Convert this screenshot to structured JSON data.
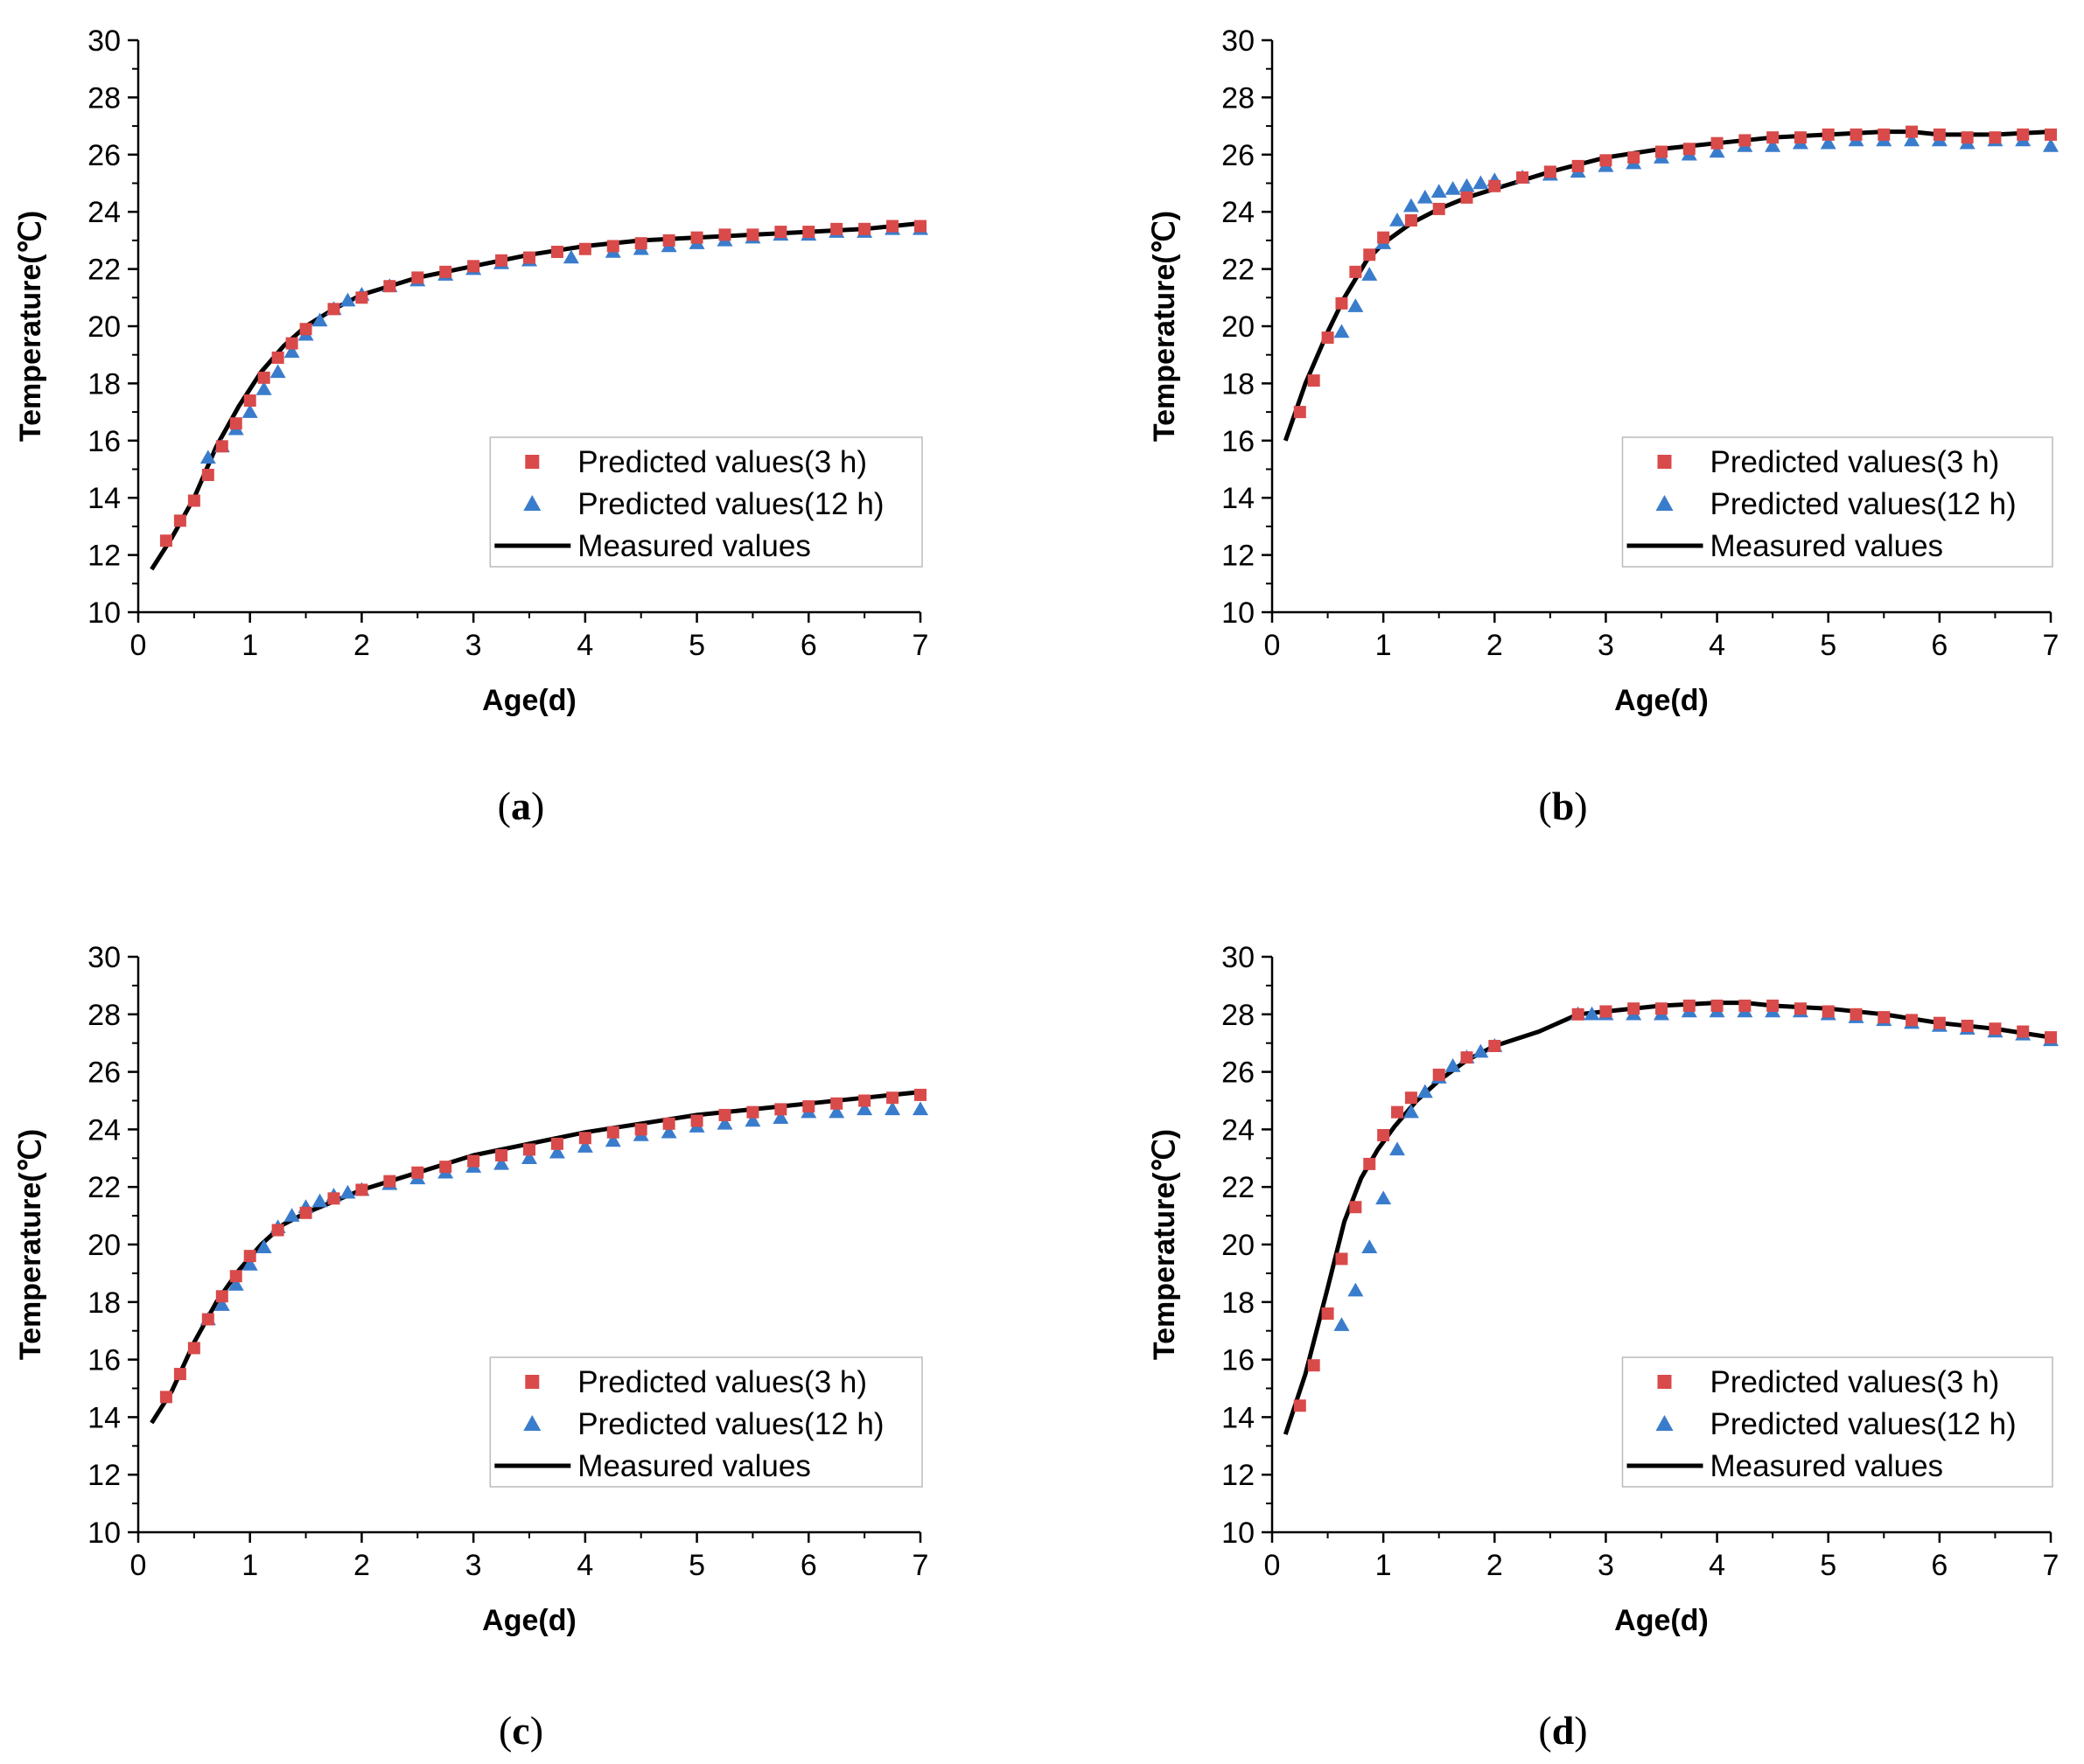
{
  "chart_data": [
    {
      "type": "line",
      "panel_label": "a",
      "xlabel": "Age(d)",
      "ylabel": "Temperature(℃)",
      "xlim": [
        0,
        7
      ],
      "ylim": [
        10,
        30
      ],
      "xticks": [
        0,
        1,
        2,
        3,
        4,
        5,
        6,
        7
      ],
      "yticks": [
        10,
        12,
        14,
        16,
        18,
        20,
        22,
        24,
        26,
        28,
        30
      ],
      "legend_position": "bottom-right",
      "legend": [
        "Predicted values(3 h)",
        "Predicted values(12 h)",
        "Measured values"
      ],
      "colors": {
        "pred_3h": "#d94a4a",
        "pred_12h": "#3a7ccc",
        "measured": "#000000"
      },
      "series": [
        {
          "name": "Predicted values(3 h)",
          "marker": "square",
          "x": [
            0.25,
            0.375,
            0.5,
            0.625,
            0.75,
            0.875,
            1.0,
            1.125,
            1.25,
            1.375,
            1.5,
            1.75,
            2.0,
            2.25,
            2.5,
            2.75,
            3.0,
            3.25,
            3.5,
            3.75,
            4.0,
            4.25,
            4.5,
            4.75,
            5.0,
            5.25,
            5.5,
            5.75,
            6.0,
            6.25,
            6.5,
            6.75,
            7.0
          ],
          "y": [
            12.5,
            13.2,
            13.9,
            14.8,
            15.8,
            16.6,
            17.4,
            18.2,
            18.9,
            19.4,
            19.9,
            20.6,
            21.0,
            21.4,
            21.7,
            21.9,
            22.1,
            22.3,
            22.4,
            22.6,
            22.7,
            22.8,
            22.9,
            23.0,
            23.1,
            23.2,
            23.2,
            23.3,
            23.3,
            23.4,
            23.4,
            23.5,
            23.5
          ]
        },
        {
          "name": "Predicted values(12 h)",
          "marker": "triangle",
          "x": [
            0.625,
            0.75,
            0.875,
            1.0,
            1.125,
            1.25,
            1.375,
            1.5,
            1.625,
            1.75,
            1.875,
            2.0,
            2.25,
            2.5,
            2.75,
            3.0,
            3.25,
            3.5,
            3.875,
            4.25,
            4.5,
            4.75,
            5.0,
            5.25,
            5.5,
            5.75,
            6.0,
            6.25,
            6.5,
            6.75,
            7.0
          ],
          "y": [
            15.4,
            15.8,
            16.4,
            17.0,
            17.8,
            18.4,
            19.1,
            19.7,
            20.2,
            20.6,
            20.9,
            21.1,
            21.4,
            21.6,
            21.8,
            22.0,
            22.2,
            22.3,
            22.4,
            22.6,
            22.7,
            22.8,
            22.9,
            23.0,
            23.1,
            23.2,
            23.2,
            23.3,
            23.3,
            23.4,
            23.4
          ]
        },
        {
          "name": "Measured values",
          "marker": "line",
          "x": [
            0.12,
            0.3,
            0.5,
            0.7,
            0.9,
            1.1,
            1.3,
            1.5,
            1.75,
            2.0,
            2.5,
            3.0,
            3.5,
            4.0,
            4.5,
            5.0,
            5.5,
            6.0,
            6.5,
            7.0
          ],
          "y": [
            11.5,
            12.6,
            14.0,
            15.8,
            17.2,
            18.4,
            19.3,
            20.0,
            20.6,
            21.1,
            21.7,
            22.1,
            22.5,
            22.8,
            23.0,
            23.1,
            23.2,
            23.3,
            23.4,
            23.6
          ]
        }
      ]
    },
    {
      "type": "line",
      "panel_label": "b",
      "xlabel": "Age(d)",
      "ylabel": "Temperature(℃)",
      "xlim": [
        0,
        7
      ],
      "ylim": [
        10,
        30
      ],
      "xticks": [
        0,
        1,
        2,
        3,
        4,
        5,
        6,
        7
      ],
      "yticks": [
        10,
        12,
        14,
        16,
        18,
        20,
        22,
        24,
        26,
        28,
        30
      ],
      "legend_position": "bottom-right",
      "legend": [
        "Predicted values(3 h)",
        "Predicted values(12 h)",
        "Measured values"
      ],
      "colors": {
        "pred_3h": "#d94a4a",
        "pred_12h": "#3a7ccc",
        "measured": "#000000"
      },
      "series": [
        {
          "name": "Predicted values(3 h)",
          "marker": "square",
          "x": [
            0.25,
            0.375,
            0.5,
            0.625,
            0.75,
            0.875,
            1.0,
            1.25,
            1.5,
            1.75,
            2.0,
            2.25,
            2.5,
            2.75,
            3.0,
            3.25,
            3.5,
            3.75,
            4.0,
            4.25,
            4.5,
            4.75,
            5.0,
            5.25,
            5.5,
            5.75,
            6.0,
            6.25,
            6.5,
            6.75,
            7.0
          ],
          "y": [
            17.0,
            18.1,
            19.6,
            20.8,
            21.9,
            22.5,
            23.1,
            23.7,
            24.1,
            24.5,
            24.9,
            25.2,
            25.4,
            25.6,
            25.8,
            25.9,
            26.1,
            26.2,
            26.4,
            26.5,
            26.6,
            26.6,
            26.7,
            26.7,
            26.7,
            26.8,
            26.7,
            26.6,
            26.6,
            26.7,
            26.7
          ]
        },
        {
          "name": "Predicted values(12 h)",
          "marker": "triangle",
          "x": [
            0.625,
            0.75,
            0.875,
            1.0,
            1.125,
            1.25,
            1.375,
            1.5,
            1.625,
            1.75,
            1.875,
            2.0,
            2.25,
            2.5,
            2.75,
            3.0,
            3.25,
            3.5,
            3.75,
            4.0,
            4.25,
            4.5,
            4.75,
            5.0,
            5.25,
            5.5,
            5.75,
            6.0,
            6.25,
            6.5,
            6.75,
            7.0
          ],
          "y": [
            19.8,
            20.7,
            21.8,
            22.9,
            23.7,
            24.2,
            24.5,
            24.7,
            24.8,
            24.9,
            25.0,
            25.1,
            25.2,
            25.3,
            25.4,
            25.6,
            25.7,
            25.9,
            26.0,
            26.1,
            26.3,
            26.3,
            26.4,
            26.4,
            26.5,
            26.5,
            26.5,
            26.5,
            26.4,
            26.5,
            26.5,
            26.3
          ]
        },
        {
          "name": "Measured values",
          "marker": "line",
          "x": [
            0.12,
            0.3,
            0.5,
            0.65,
            0.85,
            1.0,
            1.25,
            1.5,
            1.75,
            2.0,
            2.5,
            3.0,
            3.5,
            4.0,
            4.5,
            5.0,
            5.5,
            5.75,
            6.0,
            6.5,
            7.0
          ],
          "y": [
            16.0,
            18.0,
            19.8,
            21.0,
            22.3,
            22.9,
            23.6,
            24.1,
            24.5,
            24.8,
            25.4,
            25.9,
            26.2,
            26.4,
            26.6,
            26.7,
            26.8,
            26.8,
            26.7,
            26.7,
            26.8
          ]
        }
      ]
    },
    {
      "type": "line",
      "panel_label": "c",
      "xlabel": "Age(d)",
      "ylabel": "Temperature(℃)",
      "xlim": [
        0,
        7
      ],
      "ylim": [
        10,
        30
      ],
      "xticks": [
        0,
        1,
        2,
        3,
        4,
        5,
        6,
        7
      ],
      "yticks": [
        10,
        12,
        14,
        16,
        18,
        20,
        22,
        24,
        26,
        28,
        30
      ],
      "legend_position": "bottom-right",
      "legend": [
        "Predicted values(3 h)",
        "Predicted values(12 h)",
        "Measured values"
      ],
      "colors": {
        "pred_3h": "#d94a4a",
        "pred_12h": "#3a7ccc",
        "measured": "#000000"
      },
      "series": [
        {
          "name": "Predicted values(3 h)",
          "marker": "square",
          "x": [
            0.25,
            0.375,
            0.5,
            0.625,
            0.75,
            0.875,
            1.0,
            1.25,
            1.5,
            1.75,
            2.0,
            2.25,
            2.5,
            2.75,
            3.0,
            3.25,
            3.5,
            3.75,
            4.0,
            4.25,
            4.5,
            4.75,
            5.0,
            5.25,
            5.5,
            5.75,
            6.0,
            6.25,
            6.5,
            6.75,
            7.0
          ],
          "y": [
            14.7,
            15.5,
            16.4,
            17.4,
            18.2,
            18.9,
            19.6,
            20.5,
            21.1,
            21.6,
            21.9,
            22.2,
            22.5,
            22.7,
            22.9,
            23.1,
            23.3,
            23.5,
            23.7,
            23.9,
            24.0,
            24.2,
            24.3,
            24.5,
            24.6,
            24.7,
            24.8,
            24.9,
            25.0,
            25.1,
            25.2
          ]
        },
        {
          "name": "Predicted values(12 h)",
          "marker": "triangle",
          "x": [
            0.625,
            0.75,
            0.875,
            1.0,
            1.125,
            1.25,
            1.375,
            1.5,
            1.625,
            1.75,
            1.875,
            2.0,
            2.25,
            2.5,
            2.75,
            3.0,
            3.25,
            3.5,
            3.75,
            4.0,
            4.25,
            4.5,
            4.75,
            5.0,
            5.25,
            5.5,
            5.75,
            6.0,
            6.25,
            6.5,
            6.75,
            7.0
          ],
          "y": [
            17.4,
            17.9,
            18.6,
            19.3,
            19.9,
            20.6,
            21.0,
            21.3,
            21.5,
            21.7,
            21.8,
            21.9,
            22.1,
            22.3,
            22.5,
            22.7,
            22.8,
            23.0,
            23.2,
            23.4,
            23.6,
            23.8,
            23.9,
            24.1,
            24.2,
            24.3,
            24.4,
            24.6,
            24.6,
            24.7,
            24.7,
            24.7
          ]
        },
        {
          "name": "Measured values",
          "marker": "line",
          "x": [
            0.12,
            0.3,
            0.5,
            0.7,
            0.9,
            1.1,
            1.3,
            1.5,
            1.75,
            2.0,
            2.5,
            3.0,
            3.5,
            4.0,
            4.5,
            5.0,
            5.5,
            6.0,
            6.5,
            7.0
          ],
          "y": [
            13.8,
            14.9,
            16.6,
            18.0,
            19.1,
            20.0,
            20.7,
            21.1,
            21.5,
            21.9,
            22.5,
            23.1,
            23.5,
            23.9,
            24.2,
            24.5,
            24.7,
            24.9,
            25.1,
            25.3
          ]
        }
      ]
    },
    {
      "type": "line",
      "panel_label": "d",
      "xlabel": "Age(d)",
      "ylabel": "Temperature(℃)",
      "xlim": [
        0,
        7
      ],
      "ylim": [
        10,
        30
      ],
      "xticks": [
        0,
        1,
        2,
        3,
        4,
        5,
        6,
        7
      ],
      "yticks": [
        10,
        12,
        14,
        16,
        18,
        20,
        22,
        24,
        26,
        28,
        30
      ],
      "legend_position": "bottom-right",
      "legend": [
        "Predicted values(3 h)",
        "Predicted values(12 h)",
        "Measured values"
      ],
      "colors": {
        "pred_3h": "#d94a4a",
        "pred_12h": "#3a7ccc",
        "measured": "#000000"
      },
      "series": [
        {
          "name": "Predicted values(3 h)",
          "marker": "square",
          "x": [
            0.25,
            0.375,
            0.5,
            0.625,
            0.75,
            0.875,
            1.0,
            1.125,
            1.25,
            1.5,
            1.75,
            2.0,
            2.75,
            3.0,
            3.25,
            3.5,
            3.75,
            4.0,
            4.25,
            4.5,
            4.75,
            5.0,
            5.25,
            5.5,
            5.75,
            6.0,
            6.25,
            6.5,
            6.75,
            7.0
          ],
          "y": [
            14.4,
            15.8,
            17.6,
            19.5,
            21.3,
            22.8,
            23.8,
            24.6,
            25.1,
            25.9,
            26.5,
            26.9,
            28.0,
            28.1,
            28.2,
            28.2,
            28.3,
            28.3,
            28.3,
            28.3,
            28.2,
            28.1,
            28.0,
            27.9,
            27.8,
            27.7,
            27.6,
            27.5,
            27.4,
            27.2
          ]
        },
        {
          "name": "Predicted values(12 h)",
          "marker": "triangle",
          "x": [
            0.625,
            0.75,
            0.875,
            1.0,
            1.125,
            1.25,
            1.375,
            1.5,
            1.625,
            1.75,
            1.875,
            2.0,
            2.75,
            2.875,
            3.0,
            3.25,
            3.5,
            3.75,
            4.0,
            4.25,
            4.5,
            4.75,
            5.0,
            5.25,
            5.5,
            5.75,
            6.0,
            6.25,
            6.5,
            6.75,
            7.0
          ],
          "y": [
            17.2,
            18.4,
            19.9,
            21.6,
            23.3,
            24.6,
            25.3,
            25.8,
            26.2,
            26.5,
            26.7,
            26.9,
            28.0,
            28.0,
            28.0,
            28.0,
            28.0,
            28.1,
            28.1,
            28.1,
            28.1,
            28.1,
            28.0,
            27.9,
            27.8,
            27.7,
            27.6,
            27.5,
            27.4,
            27.3,
            27.1
          ]
        },
        {
          "name": "Measured values",
          "marker": "line",
          "x": [
            0.12,
            0.3,
            0.5,
            0.65,
            0.8,
            0.95,
            1.1,
            1.3,
            1.5,
            1.75,
            2.0,
            2.4,
            2.75,
            3.0,
            3.5,
            4.0,
            4.25,
            4.5,
            5.0,
            5.5,
            6.0,
            6.5,
            7.0
          ],
          "y": [
            13.4,
            15.5,
            18.5,
            20.8,
            22.3,
            23.3,
            24.1,
            25.0,
            25.7,
            26.4,
            26.9,
            27.4,
            28.0,
            28.1,
            28.3,
            28.4,
            28.4,
            28.3,
            28.2,
            28.0,
            27.7,
            27.5,
            27.2
          ]
        }
      ]
    }
  ]
}
